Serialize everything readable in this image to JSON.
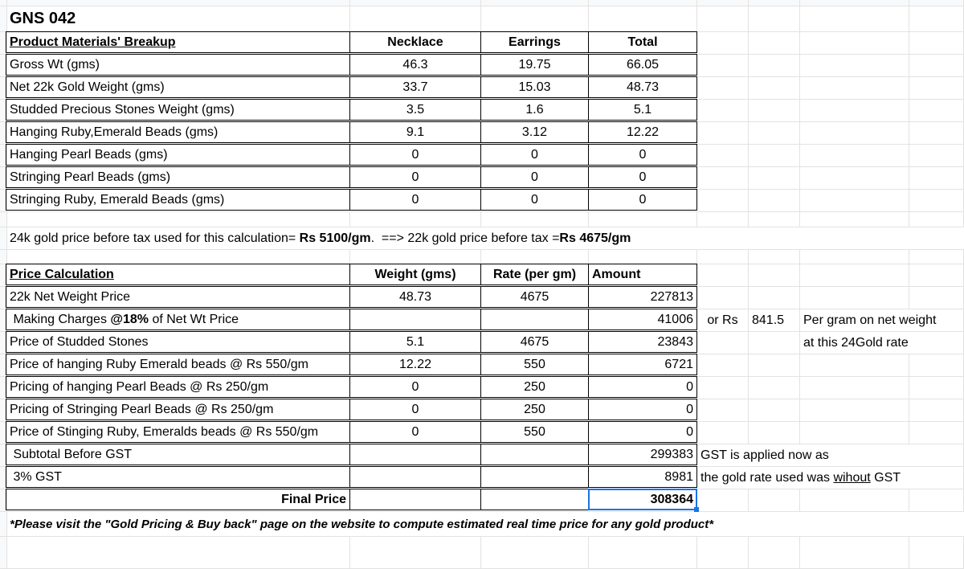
{
  "title": "GNS 042",
  "materials": {
    "headers": [
      "Product Materials' Breakup",
      "Necklace",
      "Earrings",
      "Total"
    ],
    "rows": [
      [
        "Gross Wt (gms)",
        "46.3",
        "19.75",
        "66.05"
      ],
      [
        "Net 22k Gold Weight (gms)",
        "33.7",
        "15.03",
        "48.73"
      ],
      [
        "Studded Precious Stones Weight (gms)",
        "3.5",
        "1.6",
        "5.1"
      ],
      [
        "Hanging Ruby,Emerald Beads (gms)",
        "9.1",
        "3.12",
        "12.22"
      ],
      [
        "Hanging Pearl Beads (gms)",
        "0",
        "0",
        "0"
      ],
      [
        "Stringing Pearl Beads (gms)",
        "0",
        "0",
        "0"
      ],
      [
        "Stringing Ruby, Emerald Beads (gms)",
        "0",
        "0",
        "0"
      ]
    ]
  },
  "gold_line": {
    "prefix": "24k gold price before tax used for this calculation= ",
    "rate24": "Rs 5100/gm",
    "middle": ".  ==> 22k gold price before tax =",
    "rate22": "Rs 4675/gm"
  },
  "pricing": {
    "headers": [
      "Price Calculation",
      "Weight (gms)",
      "Rate (per gm)",
      "Amount"
    ],
    "rows": [
      [
        "22k Net Weight Price",
        "48.73",
        "4675",
        "227813"
      ],
      [
        " Making Charges @18% of Net Wt Price",
        "",
        "",
        "41006"
      ],
      [
        "Price of Studded Stones",
        "5.1",
        "4675",
        "23843"
      ],
      [
        "Price of hanging Ruby Emerald beads @ Rs 550/gm",
        "12.22",
        "550",
        "6721"
      ],
      [
        "Pricing of hanging Pearl Beads @ Rs 250/gm",
        "0",
        "250",
        "0"
      ],
      [
        "Pricing of Stringing Pearl Beads @ Rs 250/gm",
        "0",
        "250",
        "0"
      ],
      [
        "Price of Stinging Ruby, Emeralds beads @ Rs 550/gm",
        "0",
        "550",
        "0"
      ],
      [
        " Subtotal Before GST",
        "",
        "",
        "299383"
      ],
      [
        " 3% GST",
        "",
        "",
        "8981"
      ]
    ],
    "final_label": "Final Price",
    "final_value": "308364",
    "notes": {
      "or_rs": "or Rs",
      "per_gram_value": "841.5",
      "per_gram_note": "Per gram on net weight",
      "rate_note": "at this 24Gold rate",
      "gst_note1": "GST is applied now as",
      "gst_note2_pre": "the gold rate used was ",
      "gst_note2_u": "wihout",
      "gst_note2_post": " GST"
    }
  },
  "footer": "*Please visit the \"Gold Pricing & Buy back\" page on the website to compute estimated real time price for any gold product*"
}
